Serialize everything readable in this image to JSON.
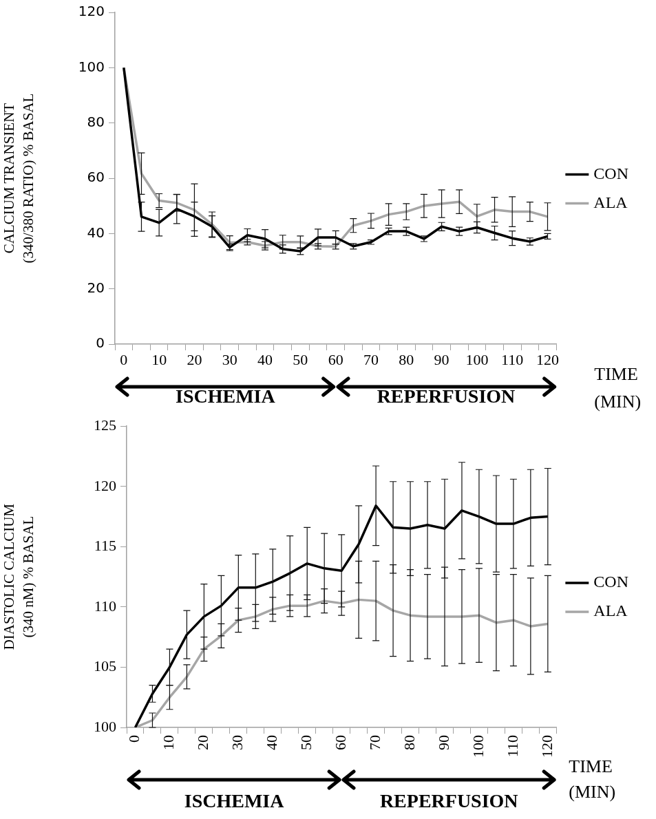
{
  "chart_data": [
    {
      "type": "line",
      "ylabel": "CALCIUM TRANSIENT (340/380 RATIO) % BASAL",
      "xlabel": "TIME (MIN)",
      "x": [
        0,
        5,
        10,
        15,
        20,
        25,
        30,
        35,
        40,
        45,
        50,
        55,
        60,
        65,
        70,
        75,
        80,
        85,
        90,
        95,
        100,
        105,
        110,
        115,
        120
      ],
      "xlim": [
        -2.5,
        122.5
      ],
      "xticks": [
        {
          "value": -2.5,
          "label": null
        },
        0,
        {
          "value": 2.5,
          "label": null
        },
        {
          "value": 7.5,
          "label": null
        },
        10,
        {
          "value": 12.5,
          "label": null
        },
        {
          "value": 17.5,
          "label": null
        },
        20,
        {
          "value": 22.5,
          "label": null
        },
        {
          "value": 27.5,
          "label": null
        },
        30,
        {
          "value": 32.5,
          "label": null
        },
        {
          "value": 37.5,
          "label": null
        },
        40,
        {
          "value": 42.5,
          "label": null
        },
        {
          "value": 47.5,
          "label": null
        },
        50,
        {
          "value": 52.5,
          "label": null
        },
        {
          "value": 57.5,
          "label": null
        },
        60,
        {
          "value": 62.5,
          "label": null
        },
        {
          "value": 67.5,
          "label": null
        },
        70,
        {
          "value": 72.5,
          "label": null
        },
        {
          "value": 77.5,
          "label": null
        },
        80,
        {
          "value": 82.5,
          "label": null
        },
        {
          "value": 87.5,
          "label": null
        },
        90,
        {
          "value": 92.5,
          "label": null
        },
        {
          "value": 97.5,
          "label": null
        },
        100,
        {
          "value": 102.5,
          "label": null
        },
        {
          "value": 107.5,
          "label": null
        },
        110,
        {
          "value": 112.5,
          "label": null
        },
        {
          "value": 117.5,
          "label": null
        },
        120,
        {
          "value": 122.5,
          "label": null
        }
      ],
      "ylim": [
        0,
        120
      ],
      "yticks": [
        0,
        20,
        40,
        60,
        80,
        100,
        120
      ],
      "grid": false,
      "legend": "right",
      "series": [
        {
          "name": "CON",
          "color": "#000000",
          "values": [
            100,
            46.1,
            43.9,
            48.9,
            46.2,
            42.5,
            35,
            39.4,
            38.1,
            34.4,
            33.6,
            38.6,
            38.6,
            35.4,
            36.9,
            40.8,
            40.8,
            38.1,
            42.5,
            40.8,
            42.2,
            40.2,
            38.3,
            37.1,
            39
          ],
          "errors": [
            null,
            5.3,
            4.8,
            5.3,
            5.2,
            3.9,
            1.2,
            2.3,
            3.3,
            1.5,
            1.2,
            3,
            2.4,
            1,
            0.8,
            1.2,
            1.5,
            1,
            1.5,
            1.5,
            2,
            2.5,
            2.6,
            1.3,
            1
          ]
        },
        {
          "name": "ALA",
          "color": "#a6a6a6",
          "values": [
            100,
            61.7,
            51.9,
            51.1,
            48.5,
            43.3,
            36.7,
            36.9,
            35.6,
            36.9,
            36.9,
            35.4,
            35.3,
            42.9,
            44.6,
            46.9,
            47.9,
            50,
            50.8,
            51.5,
            46.2,
            48.6,
            47.9,
            47.9,
            46.1
          ],
          "errors": [
            null,
            7.5,
            2.5,
            3,
            9.5,
            4.5,
            2.5,
            1,
            1.5,
            2.5,
            2.2,
            1,
            0.9,
            2.5,
            2.7,
            3.9,
            2.9,
            4.2,
            5,
            4.3,
            4.4,
            4.5,
            5.4,
            3.5,
            5
          ]
        }
      ],
      "annotations": [
        "ISCHEMIA",
        "REPERFUSION"
      ]
    },
    {
      "type": "line",
      "ylabel": "DIASTOLIC CALCIUM (340 nM) % BASAL",
      "xlabel": "TIME (MIN)",
      "x": [
        0,
        5,
        10,
        15,
        20,
        25,
        30,
        35,
        40,
        45,
        50,
        55,
        60,
        65,
        70,
        75,
        80,
        85,
        90,
        95,
        100,
        105,
        110,
        115,
        120
      ],
      "xlim": [
        -2.5,
        122.5
      ],
      "xticks": [
        {
          "value": -2.5,
          "label": null
        },
        0,
        {
          "value": 2.5,
          "label": null
        },
        {
          "value": 7.5,
          "label": null
        },
        10,
        {
          "value": 12.5,
          "label": null
        },
        {
          "value": 17.5,
          "label": null
        },
        20,
        {
          "value": 22.5,
          "label": null
        },
        {
          "value": 27.5,
          "label": null
        },
        30,
        {
          "value": 32.5,
          "label": null
        },
        {
          "value": 37.5,
          "label": null
        },
        40,
        {
          "value": 42.5,
          "label": null
        },
        {
          "value": 47.5,
          "label": null
        },
        50,
        {
          "value": 52.5,
          "label": null
        },
        {
          "value": 57.5,
          "label": null
        },
        60,
        {
          "value": 62.5,
          "label": null
        },
        {
          "value": 67.5,
          "label": null
        },
        70,
        {
          "value": 72.5,
          "label": null
        },
        {
          "value": 77.5,
          "label": null
        },
        80,
        {
          "value": 82.5,
          "label": null
        },
        {
          "value": 87.5,
          "label": null
        },
        90,
        {
          "value": 92.5,
          "label": null
        },
        {
          "value": 97.5,
          "label": null
        },
        100,
        {
          "value": 102.5,
          "label": null
        },
        {
          "value": 107.5,
          "label": null
        },
        110,
        {
          "value": 112.5,
          "label": null
        },
        {
          "value": 117.5,
          "label": null
        },
        120,
        {
          "value": 122.5,
          "label": null
        }
      ],
      "ylim": [
        100,
        125
      ],
      "yticks": [
        100,
        105,
        110,
        115,
        120,
        125
      ],
      "grid": false,
      "legend": "right",
      "series": [
        {
          "name": "CON",
          "color": "#000000",
          "values": [
            100,
            102.8,
            105,
            107.7,
            109.2,
            110.1,
            111.6,
            111.6,
            112.1,
            112.8,
            113.6,
            113.2,
            113,
            115.2,
            118.4,
            116.6,
            116.5,
            116.8,
            116.5,
            118,
            117.5,
            116.9,
            116.9,
            117.4,
            117.5
          ],
          "errors": [
            null,
            0.7,
            1.5,
            2,
            2.7,
            2.5,
            2.7,
            2.8,
            2.7,
            3.1,
            3,
            2.9,
            3,
            3.2,
            3.3,
            3.8,
            3.9,
            3.6,
            4.1,
            4,
            3.9,
            4,
            3.7,
            4,
            4
          ]
        },
        {
          "name": "ALA",
          "color": "#a6a6a6",
          "values": [
            100,
            100.6,
            102.5,
            104.2,
            106.5,
            107.6,
            108.9,
            109.2,
            109.8,
            110.1,
            110.1,
            110.5,
            110.3,
            110.6,
            110.5,
            109.7,
            109.3,
            109.2,
            109.2,
            109.2,
            109.3,
            108.7,
            108.9,
            108.4,
            108.6
          ],
          "errors": [
            null,
            0.6,
            1,
            1,
            1,
            1,
            1,
            1,
            1,
            0.9,
            0.9,
            1,
            1,
            3.2,
            3.3,
            3.8,
            3.8,
            3.5,
            4.1,
            3.9,
            3.9,
            4,
            3.8,
            4,
            4
          ]
        }
      ],
      "annotations": [
        "ISCHEMIA",
        "REPERFUSION"
      ]
    }
  ]
}
